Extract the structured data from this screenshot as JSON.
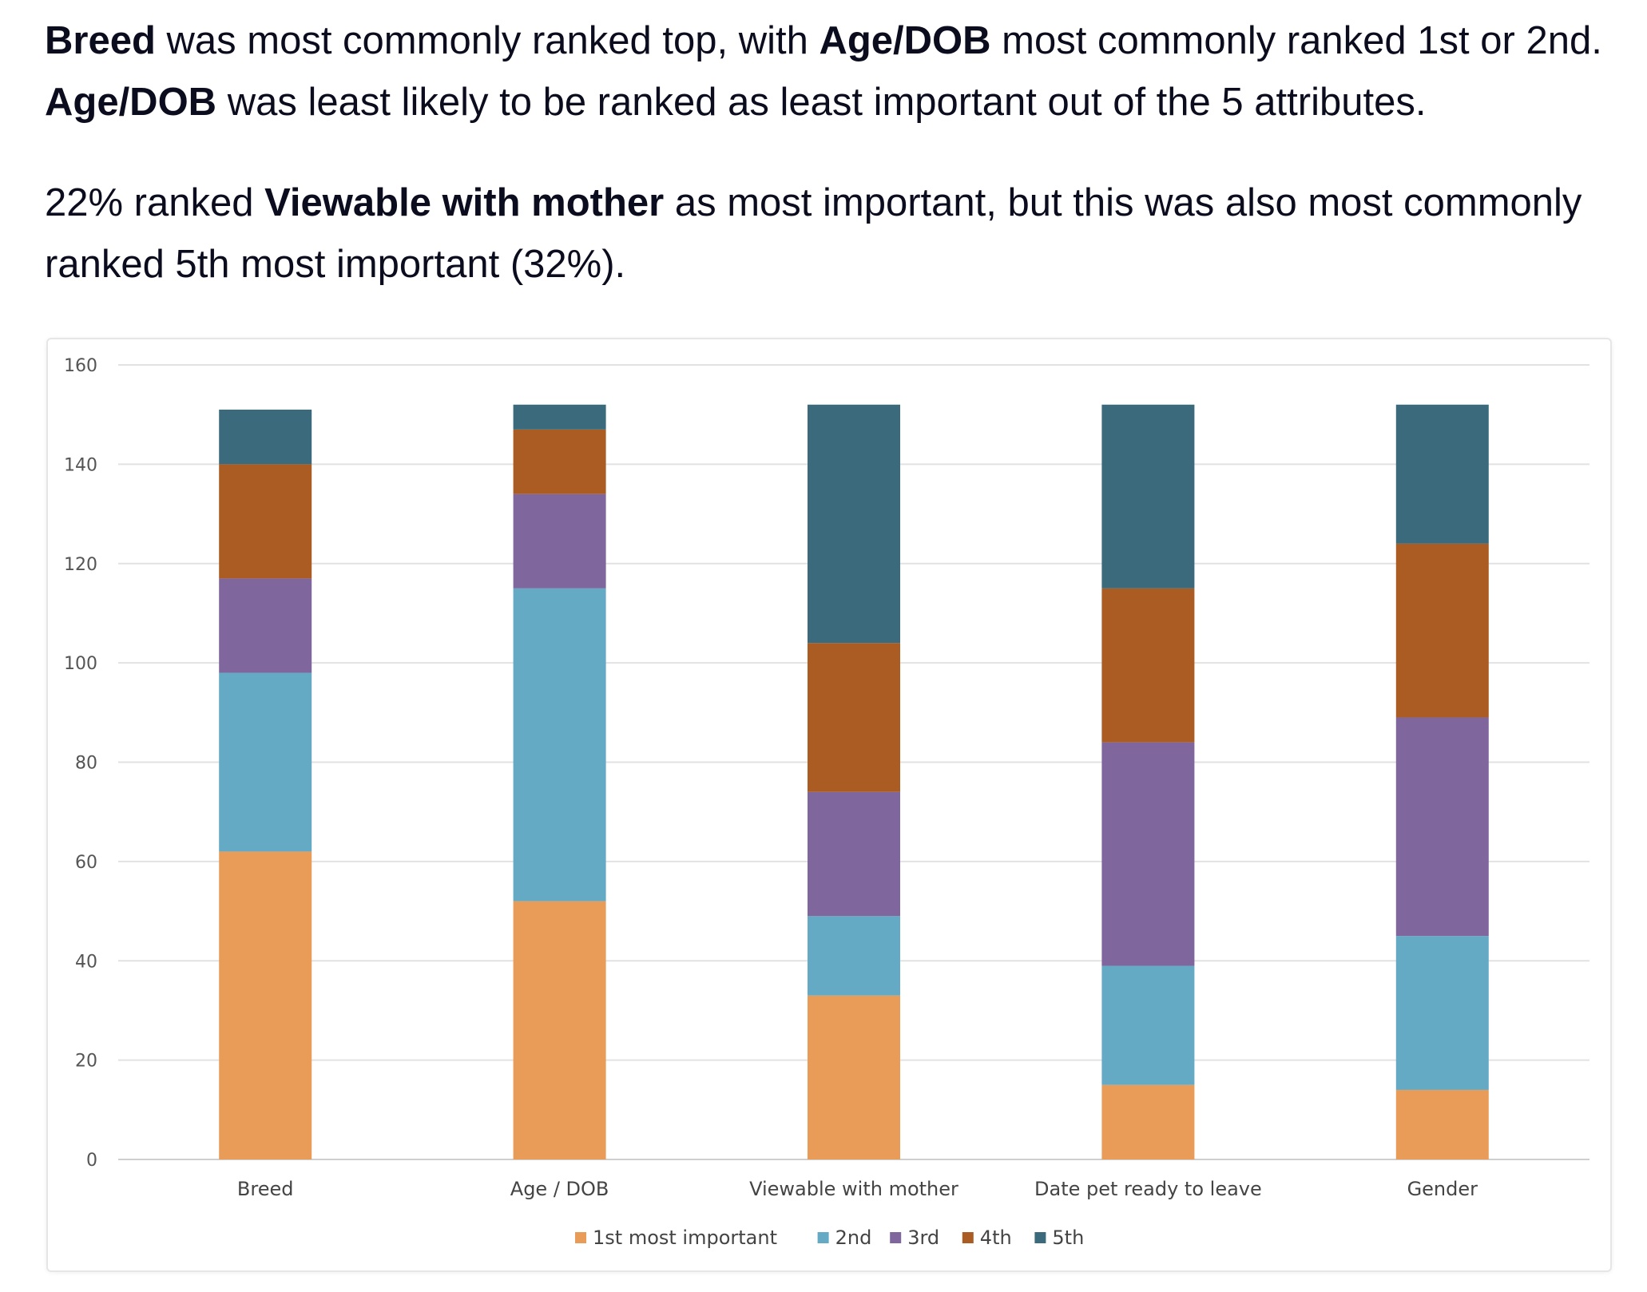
{
  "text": {
    "para1": [
      {
        "t": "Breed",
        "b": true
      },
      {
        "t": " was most commonly ranked top, with ",
        "b": false
      },
      {
        "t": "Age/DOB",
        "b": true
      },
      {
        "t": " most commonly ranked 1st or 2nd. ",
        "b": false
      },
      {
        "t": "Age/DOB",
        "b": true
      },
      {
        "t": " was least likely to be ranked as least important out of the 5 attributes.",
        "b": false
      }
    ],
    "para2": [
      {
        "t": "22% ranked ",
        "b": false
      },
      {
        "t": "Viewable with mother",
        "b": true
      },
      {
        "t": " as most important, but this was also most commonly ranked 5th most important (32%).",
        "b": false
      }
    ]
  },
  "chart_data": {
    "type": "bar",
    "stacked": true,
    "title": "",
    "xlabel": "",
    "ylabel": "",
    "ylim": [
      0,
      160
    ],
    "yticks": [
      0,
      20,
      40,
      60,
      80,
      100,
      120,
      140,
      160
    ],
    "grid": true,
    "legend_position": "bottom",
    "categories": [
      "Breed",
      "Age / DOB",
      "Viewable with mother",
      "Date pet ready to leave",
      "Gender"
    ],
    "series": [
      {
        "name": "1st most important",
        "color": "#E99C57",
        "values": [
          62,
          52,
          33,
          15,
          14
        ]
      },
      {
        "name": "2nd",
        "color": "#64AAC4",
        "values": [
          36,
          63,
          16,
          24,
          31
        ]
      },
      {
        "name": "3rd",
        "color": "#7F669D",
        "values": [
          19,
          19,
          25,
          45,
          44
        ]
      },
      {
        "name": "4th",
        "color": "#AB5C23",
        "values": [
          23,
          13,
          30,
          31,
          35
        ]
      },
      {
        "name": "5th",
        "color": "#3A6A7B",
        "values": [
          11,
          5,
          48,
          37,
          28
        ]
      }
    ]
  }
}
